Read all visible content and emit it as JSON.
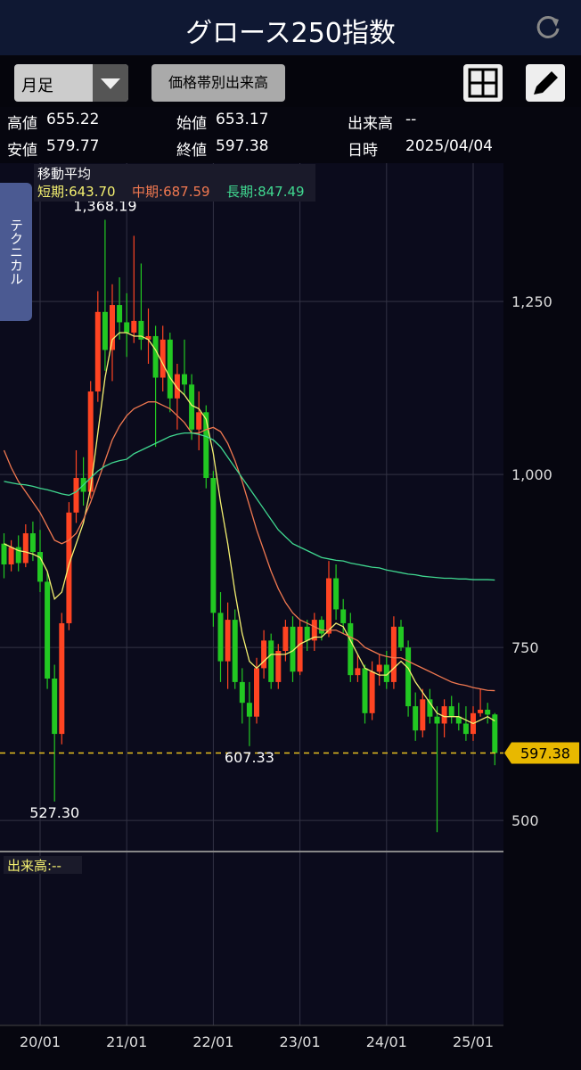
{
  "header": {
    "title": "グロース250指数"
  },
  "toolbar": {
    "period": "月足",
    "button": "価格帯別出来高"
  },
  "info": {
    "high_label": "高値",
    "open_label": "始値",
    "volume_label": "出来高",
    "volume": "--",
    "low_label": "安値",
    "close_label": "終値",
    "date_label": "日時",
    "date": "2025/04/04"
  },
  "side_tab": "テクニカル",
  "chart_data": {
    "type": "candlestick",
    "categories": [
      null,
      null,
      null,
      null,
      null,
      "20/01",
      null,
      null,
      null,
      null,
      null,
      null,
      null,
      null,
      null,
      null,
      null,
      "21/01",
      null,
      null,
      null,
      null,
      null,
      null,
      null,
      null,
      null,
      null,
      null,
      "22/01",
      null,
      null,
      null,
      null,
      null,
      null,
      null,
      null,
      null,
      null,
      null,
      "23/01",
      null,
      null,
      null,
      null,
      null,
      null,
      null,
      null,
      null,
      null,
      null,
      "24/01",
      null,
      null,
      null,
      null,
      null,
      null,
      null,
      null,
      null,
      null,
      null,
      "25/01",
      null,
      null,
      null
    ],
    "open": [
      900,
      870,
      895,
      872,
      915,
      888,
      845,
      705,
      625,
      785,
      945,
      995,
      975,
      1120,
      1235,
      1180,
      1245,
      1220,
      1205,
      1222,
      1195,
      1200,
      1140,
      1195,
      1110,
      1145,
      1130,
      1065,
      1090,
      995,
      800,
      730,
      790,
      700,
      670,
      650,
      720,
      760,
      700,
      745,
      780,
      715,
      780,
      760,
      790,
      770,
      850,
      805,
      785,
      710,
      720,
      655,
      715,
      725,
      700,
      780,
      750,
      665,
      630,
      675,
      650,
      640,
      665,
      650,
      640,
      625,
      655,
      660,
      653.17
    ],
    "high": [
      915,
      905,
      912,
      928,
      932,
      920,
      860,
      725,
      800,
      960,
      1035,
      1025,
      1135,
      1265,
      1368.19,
      1275,
      1285,
      1262,
      1345,
      1305,
      1240,
      1215,
      1215,
      1205,
      1160,
      1195,
      1145,
      1120,
      1100,
      1005,
      830,
      815,
      805,
      720,
      700,
      735,
      775,
      770,
      755,
      790,
      795,
      790,
      790,
      800,
      795,
      875,
      870,
      820,
      800,
      740,
      725,
      730,
      740,
      745,
      795,
      790,
      760,
      685,
      690,
      690,
      665,
      675,
      680,
      670,
      665,
      665,
      690,
      670,
      655.22
    ],
    "low": [
      850,
      860,
      860,
      866,
      875,
      830,
      690,
      527.3,
      610,
      775,
      930,
      955,
      965,
      1105,
      1150,
      1135,
      1195,
      1170,
      1190,
      1180,
      1160,
      1040,
      1120,
      1090,
      1065,
      1115,
      1050,
      1035,
      980,
      780,
      700,
      690,
      690,
      640,
      607.33,
      640,
      705,
      690,
      690,
      730,
      700,
      710,
      745,
      745,
      760,
      765,
      790,
      770,
      700,
      700,
      640,
      645,
      695,
      690,
      690,
      745,
      650,
      615,
      620,
      640,
      483,
      620,
      640,
      630,
      615,
      615,
      650,
      640,
      579.77
    ],
    "close": [
      870,
      895,
      872,
      915,
      888,
      845,
      705,
      625,
      785,
      945,
      995,
      975,
      1120,
      1235,
      1180,
      1245,
      1220,
      1205,
      1222,
      1195,
      1200,
      1140,
      1195,
      1110,
      1145,
      1130,
      1065,
      1090,
      995,
      800,
      730,
      790,
      700,
      670,
      650,
      720,
      760,
      700,
      745,
      780,
      715,
      780,
      760,
      790,
      770,
      850,
      805,
      785,
      710,
      720,
      655,
      715,
      725,
      700,
      780,
      750,
      665,
      630,
      675,
      650,
      640,
      665,
      650,
      640,
      625,
      655,
      660,
      653,
      597.38
    ],
    "up_color": "#ff4422",
    "down_color": "#22c822",
    "ylim": [
      455,
      1450
    ],
    "yticks": [
      {
        "value": 500,
        "label": "500"
      },
      {
        "value": 750,
        "label": "750"
      },
      {
        "value": 1000,
        "label": "1,000"
      },
      {
        "value": 1250,
        "label": "1,250"
      }
    ],
    "grid": true,
    "legend_title": "移動平均",
    "series": [
      {
        "name": "短期:",
        "color": "#f4f070",
        "current": {
          "value": 643.7,
          "label": "643.70"
        },
        "values": [
          900,
          895,
          890,
          888,
          885,
          880,
          860,
          820,
          830,
          870,
          900,
          930,
          980,
          1060,
          1140,
          1195,
          1205,
          1205,
          1200,
          1200,
          1195,
          1180,
          1160,
          1140,
          1125,
          1115,
          1100,
          1095,
          1080,
          1030,
          960,
          900,
          830,
          770,
          730,
          720,
          730,
          740,
          740,
          740,
          745,
          755,
          760,
          765,
          765,
          775,
          785,
          780,
          760,
          740,
          720,
          715,
          710,
          710,
          720,
          730,
          720,
          700,
          685,
          670,
          655,
          650,
          650,
          650,
          645,
          640,
          645,
          650,
          643.7
        ]
      },
      {
        "name": "中期:",
        "color": "#f07850",
        "current": {
          "value": 687.59,
          "label": "687.59"
        },
        "values": [
          1035,
          1010,
          990,
          975,
          960,
          945,
          925,
          905,
          900,
          905,
          915,
          935,
          960,
          990,
          1020,
          1050,
          1070,
          1085,
          1095,
          1100,
          1105,
          1105,
          1100,
          1095,
          1085,
          1075,
          1060,
          1060,
          1065,
          1068,
          1062,
          1045,
          1020,
          990,
          955,
          920,
          890,
          860,
          835,
          815,
          800,
          790,
          785,
          780,
          775,
          775,
          775,
          770,
          765,
          760,
          750,
          745,
          740,
          737,
          735,
          735,
          730,
          725,
          720,
          715,
          710,
          705,
          700,
          697,
          695,
          692,
          690,
          688,
          687.59
        ]
      },
      {
        "name": "長期:",
        "color": "#40d890",
        "current": {
          "value": 847.49,
          "label": "847.49"
        },
        "values": [
          990,
          988,
          986,
          985,
          983,
          980,
          978,
          975,
          972,
          970,
          975,
          985,
          995,
          1005,
          1012,
          1017,
          1020,
          1022,
          1030,
          1035,
          1040,
          1045,
          1050,
          1055,
          1058,
          1060,
          1060,
          1058,
          1055,
          1050,
          1040,
          1025,
          1010,
          995,
          980,
          965,
          950,
          935,
          920,
          910,
          900,
          895,
          890,
          885,
          880,
          878,
          876,
          875,
          872,
          870,
          868,
          866,
          865,
          862,
          860,
          858,
          856,
          855,
          853,
          852,
          851,
          850,
          850,
          849,
          849,
          848,
          848,
          848,
          847.49
        ]
      }
    ],
    "annotations": [
      {
        "value": 1368.19,
        "label": "1,368.19"
      },
      {
        "value": 607.33,
        "label": "607.33"
      },
      {
        "value": 527.3,
        "label": "527.30"
      }
    ],
    "volume_label": "出来高:--"
  }
}
